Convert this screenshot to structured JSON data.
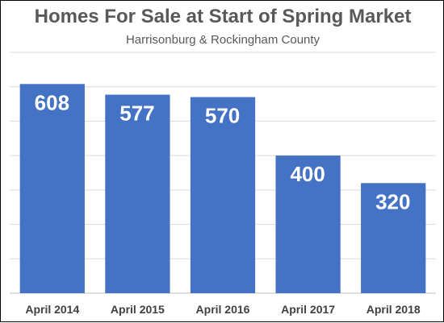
{
  "chart_data": {
    "type": "bar",
    "title": "Homes For Sale at Start of Spring Market",
    "subtitle": "Harrisonburg & Rockingham County",
    "categories": [
      "April 2014",
      "April 2015",
      "April 2016",
      "April 2017",
      "April 2018"
    ],
    "values": [
      608,
      577,
      570,
      400,
      320
    ],
    "xlabel": "",
    "ylabel": "",
    "ylim": [
      0,
      700
    ],
    "grid": true,
    "legend": "none",
    "bar_color": "#4472c4",
    "gridline_color": "#d9d9d9",
    "value_label_color": "#ffffff"
  }
}
